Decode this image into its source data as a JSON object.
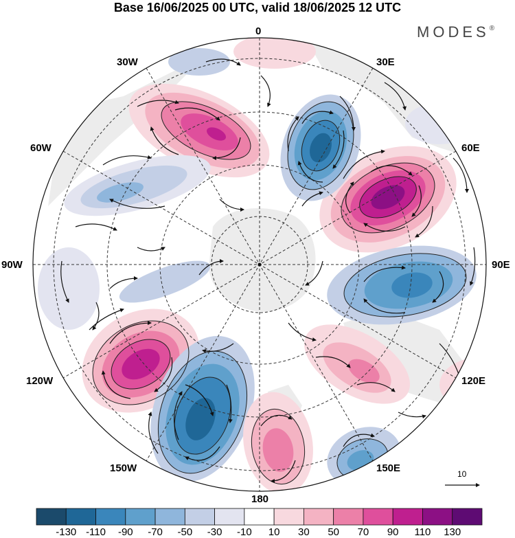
{
  "header": {
    "title": "Base 16/06/2025 00 UTC, valid 18/06/2025 12 UTC"
  },
  "logo": {
    "text": "MODES",
    "mark": "®"
  },
  "longitude_labels": {
    "lon_0": "0",
    "lon_30e": "30E",
    "lon_60e": "60E",
    "lon_90e": "90E",
    "lon_120e": "120E",
    "lon_150e": "150E",
    "lon_180": "180",
    "lon_150w": "150W",
    "lon_120w": "120W",
    "lon_90w": "90W",
    "lon_60w": "60W",
    "lon_30w": "30W"
  },
  "reference_vector": {
    "label": "10"
  },
  "colorbar": {
    "colors": [
      "#1b4a6b",
      "#1f6797",
      "#3a86bb",
      "#5fa0cc",
      "#8fb6dc",
      "#c3cfe6",
      "#e3e4f0",
      "#ffffff",
      "#f8d9df",
      "#f4b3c3",
      "#ec80a8",
      "#df4f9c",
      "#bf1f8f",
      "#8c1084",
      "#5e0b73"
    ],
    "labels": [
      "-130",
      "-110",
      "-90",
      "-70",
      "-50",
      "-30",
      "-10",
      "10",
      "30",
      "50",
      "70",
      "90",
      "110",
      "130"
    ]
  },
  "map": {
    "projection": "south-polar-stereographic",
    "land_color": "#efefef",
    "anomaly_centers": [
      {
        "sign": "positive",
        "region": "60E",
        "strength": "strong"
      },
      {
        "sign": "negative",
        "region": "30E",
        "strength": "strong"
      },
      {
        "sign": "negative",
        "region": "90E",
        "strength": "moderate"
      },
      {
        "sign": "positive",
        "region": "30W",
        "strength": "strong"
      },
      {
        "sign": "negative",
        "region": "60W",
        "strength": "weak"
      },
      {
        "sign": "positive",
        "region": "120W",
        "strength": "strong"
      },
      {
        "sign": "negative",
        "region": "150W",
        "strength": "strong"
      },
      {
        "sign": "positive",
        "region": "165E",
        "strength": "moderate"
      },
      {
        "sign": "negative",
        "region": "150E",
        "strength": "moderate"
      },
      {
        "sign": "positive",
        "region": "130E",
        "strength": "weak"
      }
    ]
  }
}
